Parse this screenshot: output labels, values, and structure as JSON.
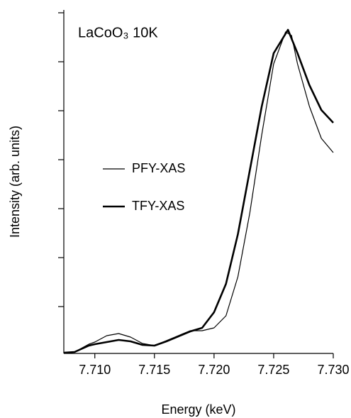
{
  "chart_data": {
    "type": "line",
    "title": "LaCoO₃ 10K",
    "x_label": "Energy (keV)",
    "y_label": "Intensity (arb. units)",
    "xlim": [
      7.7074,
      7.73
    ],
    "xticks": [
      {
        "value": 7.71,
        "label": "7.710"
      },
      {
        "value": 7.715,
        "label": "7.715"
      },
      {
        "value": 7.72,
        "label": "7.720"
      },
      {
        "value": 7.725,
        "label": "7.725"
      },
      {
        "value": 7.73,
        "label": "7.730"
      }
    ],
    "ylim": [
      0,
      483
    ],
    "yticks": [
      66,
      135,
      204,
      273,
      342,
      411,
      480
    ],
    "series": [
      {
        "name": "PFY-XAS",
        "color": "#000000",
        "width": 1.2,
        "x": [
          7.7074,
          7.7083,
          7.7095,
          7.71,
          7.711,
          7.712,
          7.713,
          7.714,
          7.715,
          7.716,
          7.717,
          7.718,
          7.719,
          7.72,
          7.721,
          7.722,
          7.723,
          7.724,
          7.725,
          7.726,
          7.7265,
          7.727,
          7.728,
          7.729,
          7.73
        ],
        "values": [
          1,
          2,
          13,
          16,
          25,
          28,
          23,
          14,
          11,
          18,
          25,
          32,
          32,
          36,
          53,
          108,
          198,
          308,
          408,
          453,
          448,
          408,
          348,
          303,
          283
        ]
      },
      {
        "name": "TFY-XAS",
        "color": "#000000",
        "width": 2.6,
        "x": [
          7.7074,
          7.7083,
          7.7095,
          7.71,
          7.712,
          7.713,
          7.714,
          7.715,
          7.716,
          7.717,
          7.718,
          7.719,
          7.72,
          7.721,
          7.722,
          7.723,
          7.724,
          7.725,
          7.7262,
          7.727,
          7.728,
          7.729,
          7.73
        ],
        "values": [
          1,
          2,
          11,
          13,
          19,
          17,
          12,
          11,
          17,
          24,
          31,
          36,
          58,
          98,
          168,
          258,
          348,
          423,
          456,
          423,
          378,
          343,
          325
        ]
      }
    ]
  }
}
